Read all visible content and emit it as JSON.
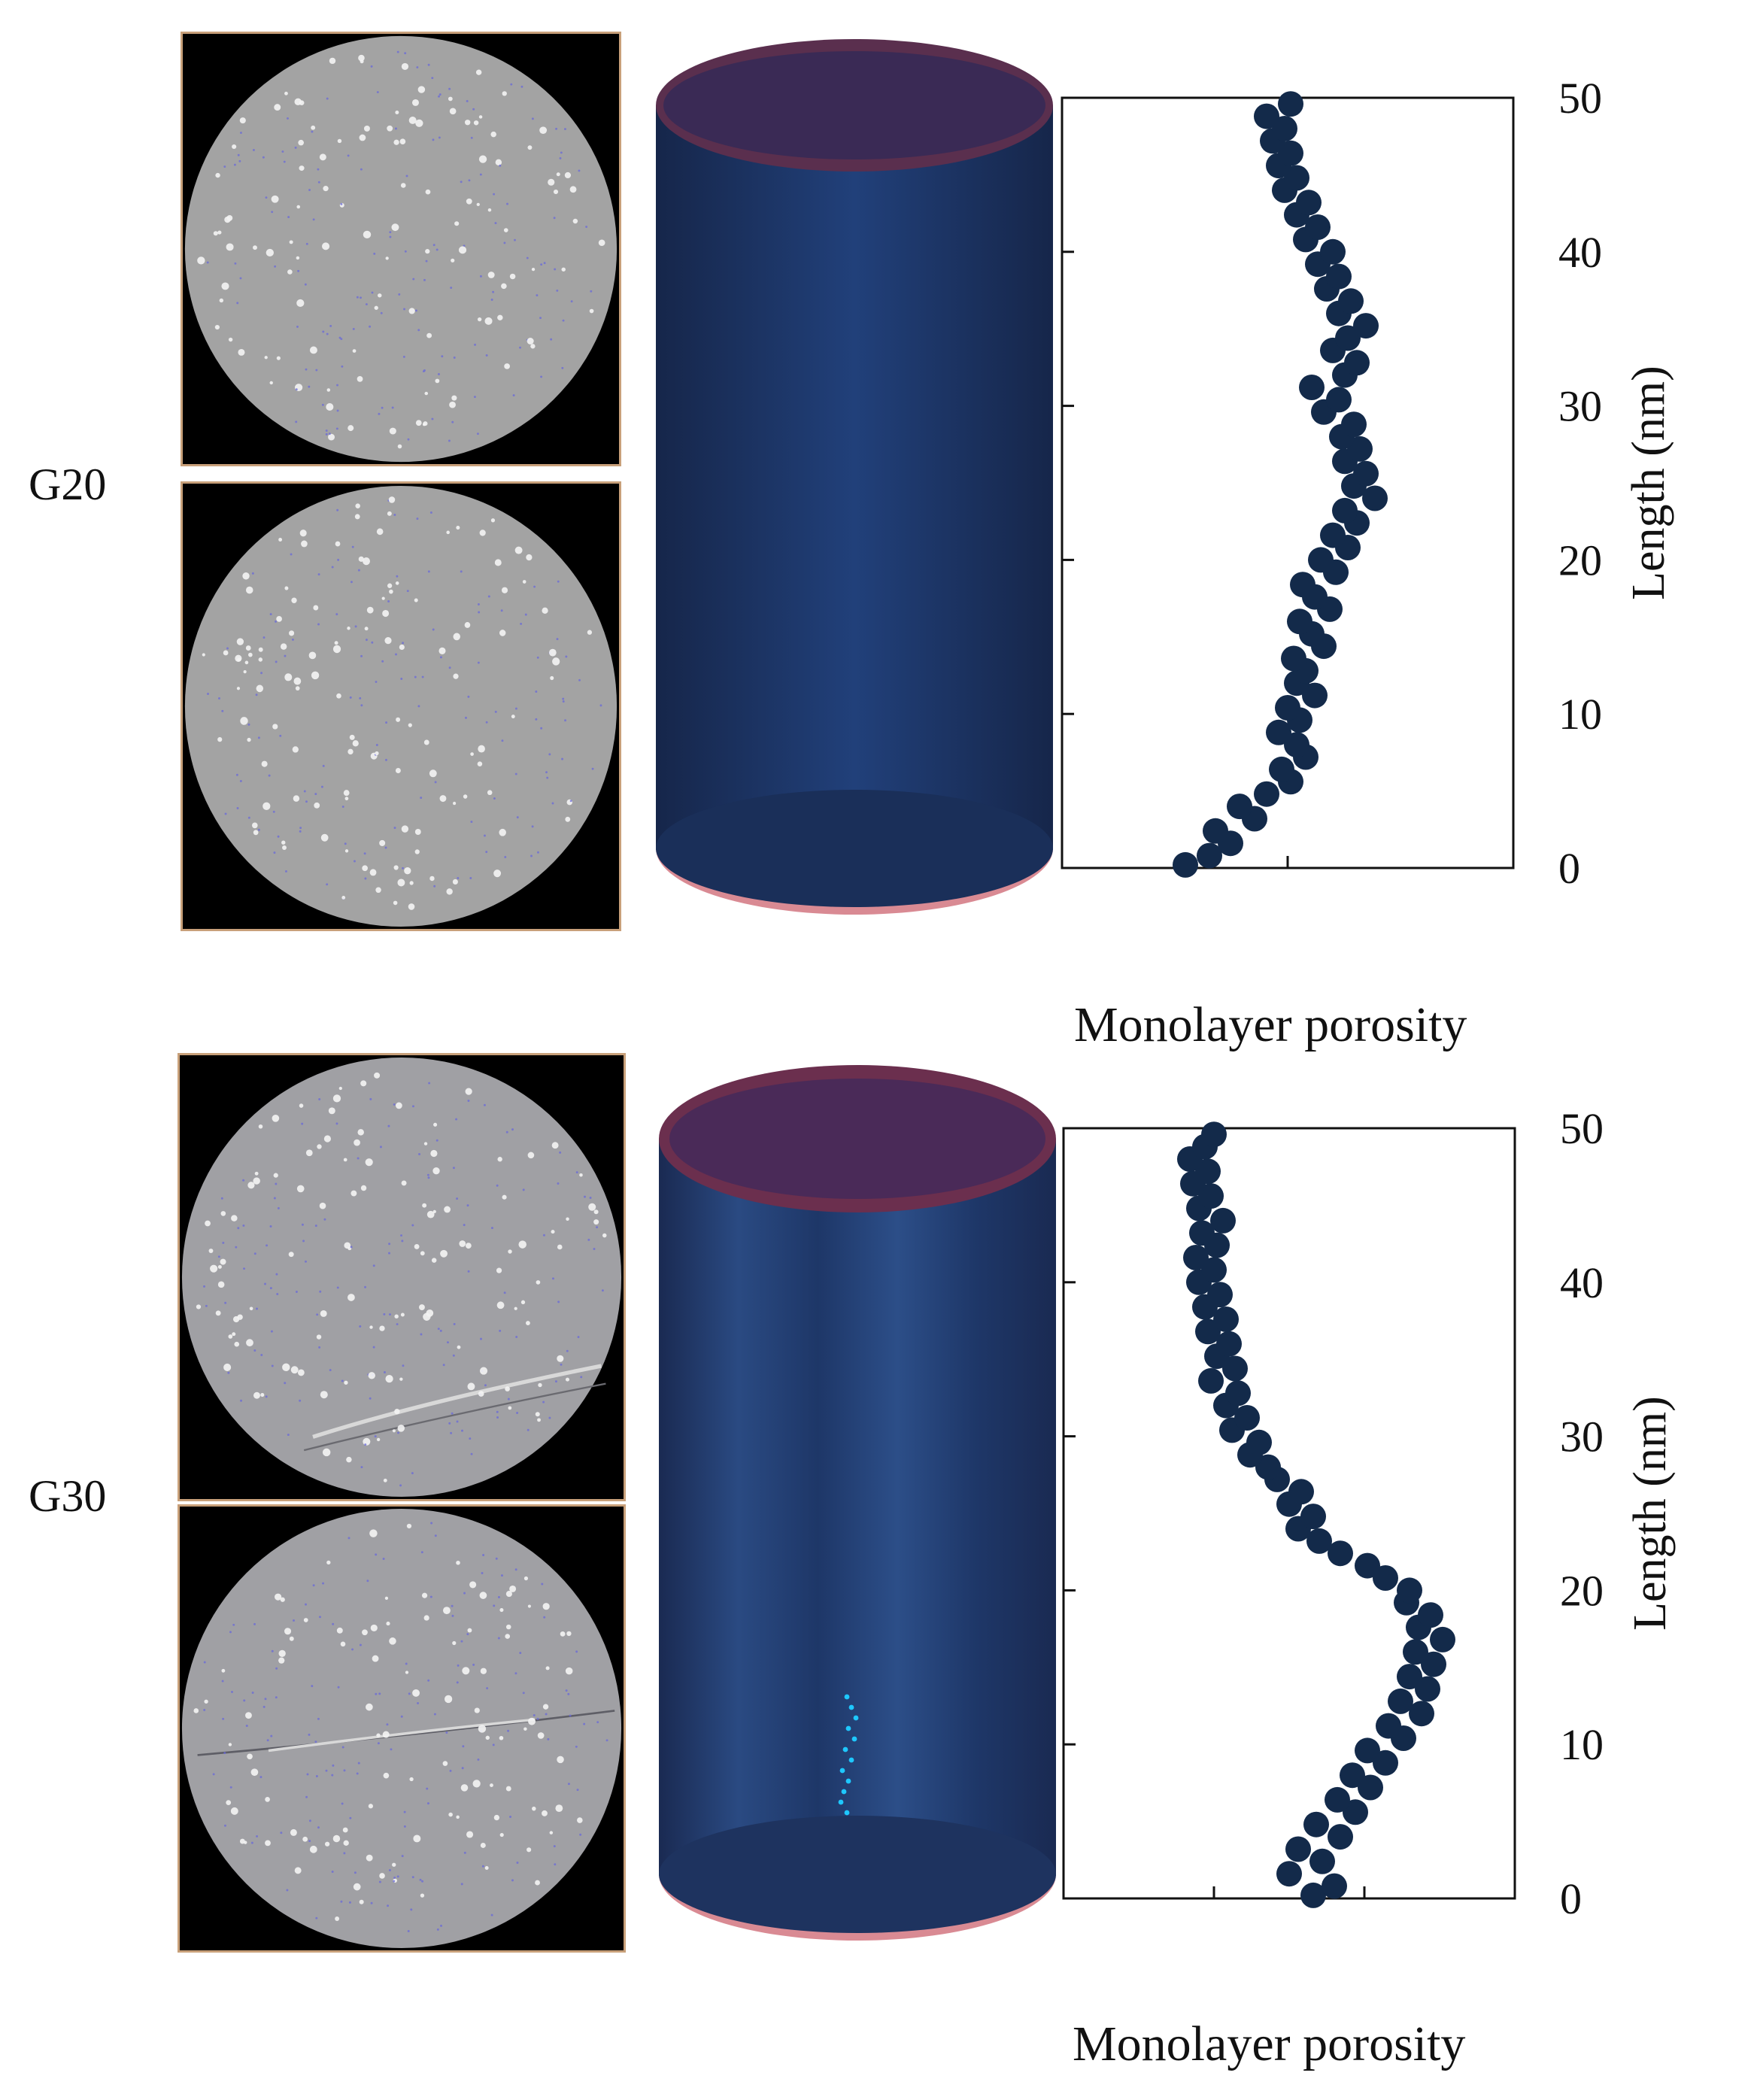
{
  "colors": {
    "marker": "#132a4a",
    "slice_gray": "#a3a3a3",
    "slice_background": "#000000",
    "slice_border": "#c8a07a",
    "cylinder_body": "#1c3563",
    "cylinder_cap": "#e8a0a8",
    "cluster_highlight": "#1ec8ff"
  },
  "panels": [
    {
      "label": "G20",
      "xlabel": "Monolayer porosity"
    },
    {
      "label": "G30",
      "xlabel": "Monolayer porosity"
    }
  ],
  "chart_data": [
    {
      "type": "scatter",
      "title": "",
      "xlabel": "Monolayer porosity",
      "ylabel": "Length (nm)",
      "xlim": [
        0,
        3
      ],
      "ylim": [
        0,
        50
      ],
      "yticks": [
        0,
        10,
        20,
        30,
        40,
        50
      ],
      "xtick_positions": [
        1.5
      ],
      "xtick_labels_shown": false,
      "grid": false,
      "yaxis_side": "right",
      "series": [
        {
          "points": [
            [
              0.82,
              0.2
            ],
            [
              0.98,
              0.8
            ],
            [
              1.12,
              1.6
            ],
            [
              1.02,
              2.4
            ],
            [
              1.28,
              3.2
            ],
            [
              1.18,
              4.0
            ],
            [
              1.36,
              4.8
            ],
            [
              1.52,
              5.6
            ],
            [
              1.46,
              6.4
            ],
            [
              1.62,
              7.2
            ],
            [
              1.56,
              8.0
            ],
            [
              1.44,
              8.8
            ],
            [
              1.58,
              9.6
            ],
            [
              1.5,
              10.4
            ],
            [
              1.68,
              11.2
            ],
            [
              1.56,
              12.0
            ],
            [
              1.62,
              12.8
            ],
            [
              1.54,
              13.6
            ],
            [
              1.74,
              14.4
            ],
            [
              1.66,
              15.2
            ],
            [
              1.58,
              16.0
            ],
            [
              1.78,
              16.8
            ],
            [
              1.68,
              17.6
            ],
            [
              1.6,
              18.4
            ],
            [
              1.82,
              19.2
            ],
            [
              1.72,
              20.0
            ],
            [
              1.9,
              20.8
            ],
            [
              1.8,
              21.6
            ],
            [
              1.96,
              22.4
            ],
            [
              1.88,
              23.2
            ],
            [
              2.08,
              24.0
            ],
            [
              1.94,
              24.8
            ],
            [
              2.02,
              25.6
            ],
            [
              1.88,
              26.4
            ],
            [
              1.98,
              27.2
            ],
            [
              1.86,
              28.0
            ],
            [
              1.94,
              28.8
            ],
            [
              1.74,
              29.6
            ],
            [
              1.84,
              30.4
            ],
            [
              1.66,
              31.2
            ],
            [
              1.88,
              32.0
            ],
            [
              1.96,
              32.8
            ],
            [
              1.8,
              33.6
            ],
            [
              1.9,
              34.4
            ],
            [
              2.02,
              35.2
            ],
            [
              1.84,
              36.0
            ],
            [
              1.92,
              36.8
            ],
            [
              1.76,
              37.6
            ],
            [
              1.84,
              38.4
            ],
            [
              1.7,
              39.2
            ],
            [
              1.8,
              40.0
            ],
            [
              1.62,
              40.8
            ],
            [
              1.7,
              41.6
            ],
            [
              1.56,
              42.4
            ],
            [
              1.64,
              43.2
            ],
            [
              1.48,
              44.0
            ],
            [
              1.56,
              44.8
            ],
            [
              1.44,
              45.6
            ],
            [
              1.52,
              46.4
            ],
            [
              1.4,
              47.2
            ],
            [
              1.48,
              48.0
            ],
            [
              1.36,
              48.8
            ],
            [
              1.52,
              49.6
            ]
          ]
        }
      ]
    },
    {
      "type": "scatter",
      "title": "",
      "xlabel": "Monolayer porosity",
      "ylabel": "Length (nm)",
      "xlim": [
        0,
        3
      ],
      "ylim": [
        0,
        50
      ],
      "yticks": [
        0,
        10,
        20,
        30,
        40,
        50
      ],
      "xtick_positions": [
        1.0,
        2.0
      ],
      "xtick_labels_shown": false,
      "grid": false,
      "yaxis_side": "right",
      "series": [
        {
          "points": [
            [
              1.66,
              0.2
            ],
            [
              1.8,
              0.8
            ],
            [
              1.5,
              1.6
            ],
            [
              1.72,
              2.4
            ],
            [
              1.56,
              3.2
            ],
            [
              1.84,
              4.0
            ],
            [
              1.68,
              4.8
            ],
            [
              1.94,
              5.6
            ],
            [
              1.82,
              6.4
            ],
            [
              2.04,
              7.2
            ],
            [
              1.92,
              8.0
            ],
            [
              2.14,
              8.8
            ],
            [
              2.02,
              9.6
            ],
            [
              2.26,
              10.4
            ],
            [
              2.16,
              11.2
            ],
            [
              2.38,
              12.0
            ],
            [
              2.24,
              12.8
            ],
            [
              2.42,
              13.6
            ],
            [
              2.3,
              14.4
            ],
            [
              2.46,
              15.2
            ],
            [
              2.34,
              16.0
            ],
            [
              2.52,
              16.8
            ],
            [
              2.36,
              17.6
            ],
            [
              2.44,
              18.4
            ],
            [
              2.28,
              19.2
            ],
            [
              2.3,
              20.0
            ],
            [
              2.14,
              20.8
            ],
            [
              2.02,
              21.6
            ],
            [
              1.84,
              22.4
            ],
            [
              1.7,
              23.2
            ],
            [
              1.56,
              24.0
            ],
            [
              1.66,
              24.8
            ],
            [
              1.5,
              25.6
            ],
            [
              1.58,
              26.4
            ],
            [
              1.42,
              27.2
            ],
            [
              1.36,
              28.0
            ],
            [
              1.24,
              28.8
            ],
            [
              1.3,
              29.6
            ],
            [
              1.12,
              30.4
            ],
            [
              1.22,
              31.2
            ],
            [
              1.08,
              32.0
            ],
            [
              1.16,
              32.8
            ],
            [
              0.98,
              33.6
            ],
            [
              1.14,
              34.4
            ],
            [
              1.02,
              35.2
            ],
            [
              1.1,
              36.0
            ],
            [
              0.96,
              36.8
            ],
            [
              1.08,
              37.6
            ],
            [
              0.94,
              38.4
            ],
            [
              1.04,
              39.2
            ],
            [
              0.9,
              40.0
            ],
            [
              1.0,
              40.8
            ],
            [
              0.88,
              41.6
            ],
            [
              1.02,
              42.4
            ],
            [
              0.92,
              43.2
            ],
            [
              1.06,
              44.0
            ],
            [
              0.9,
              44.8
            ],
            [
              0.98,
              45.6
            ],
            [
              0.86,
              46.4
            ],
            [
              0.96,
              47.2
            ],
            [
              0.84,
              48.0
            ],
            [
              0.94,
              48.8
            ],
            [
              1.0,
              49.6
            ]
          ]
        }
      ]
    }
  ]
}
